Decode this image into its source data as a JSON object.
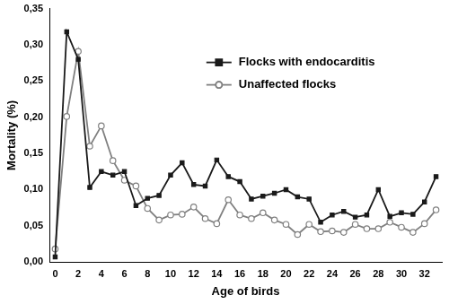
{
  "chart_data": {
    "type": "line",
    "x_label": "Age of birds",
    "y_label": "Mortality (%)",
    "categories": [
      "0",
      null,
      "2",
      null,
      "4",
      null,
      "6",
      null,
      "8",
      null,
      "10",
      null,
      "12",
      null,
      "14",
      null,
      "16",
      null,
      "18",
      null,
      "20",
      null,
      "22",
      null,
      "24",
      null,
      "26",
      null,
      "28",
      null,
      "30",
      null,
      "32",
      null
    ],
    "series": [
      {
        "name": "Flocks with endocarditis",
        "color": "#1a1a1a",
        "marker": "square",
        "values": [
          0.007,
          0.318,
          0.28,
          0.103,
          0.125,
          0.12,
          0.125,
          0.078,
          0.088,
          0.092,
          0.12,
          0.137,
          0.107,
          0.105,
          0.141,
          0.118,
          0.111,
          0.087,
          0.091,
          0.095,
          0.1,
          0.09,
          0.087,
          0.055,
          0.065,
          0.07,
          0.062,
          0.065,
          0.1,
          0.063,
          0.068,
          0.066,
          0.083,
          0.118
        ]
      },
      {
        "name": "Unaffected flocks",
        "color": "#808080",
        "marker": "open_circle",
        "values": [
          0.018,
          0.201,
          0.291,
          0.16,
          0.188,
          0.14,
          0.113,
          0.105,
          0.074,
          0.058,
          0.065,
          0.066,
          0.076,
          0.06,
          0.053,
          0.086,
          0.065,
          0.06,
          0.068,
          0.058,
          0.052,
          0.038,
          0.052,
          0.042,
          0.043,
          0.041,
          0.052,
          0.046,
          0.046,
          0.055,
          0.048,
          0.041,
          0.053,
          0.072
        ]
      }
    ],
    "ylim": [
      0,
      0.35
    ],
    "yticks": [
      {
        "value": 0,
        "label": "0,00"
      },
      {
        "value": 0.05,
        "label": "0,05"
      },
      {
        "value": 0.1,
        "label": "0,10"
      },
      {
        "value": 0.15,
        "label": "0,15"
      },
      {
        "value": 0.2,
        "label": "0,20"
      },
      {
        "value": 0.25,
        "label": "0,25"
      },
      {
        "value": 0.3,
        "label": "0,30"
      },
      {
        "value": 0.35,
        "label": "0,35"
      }
    ],
    "grid": false,
    "legend": "upper right"
  }
}
